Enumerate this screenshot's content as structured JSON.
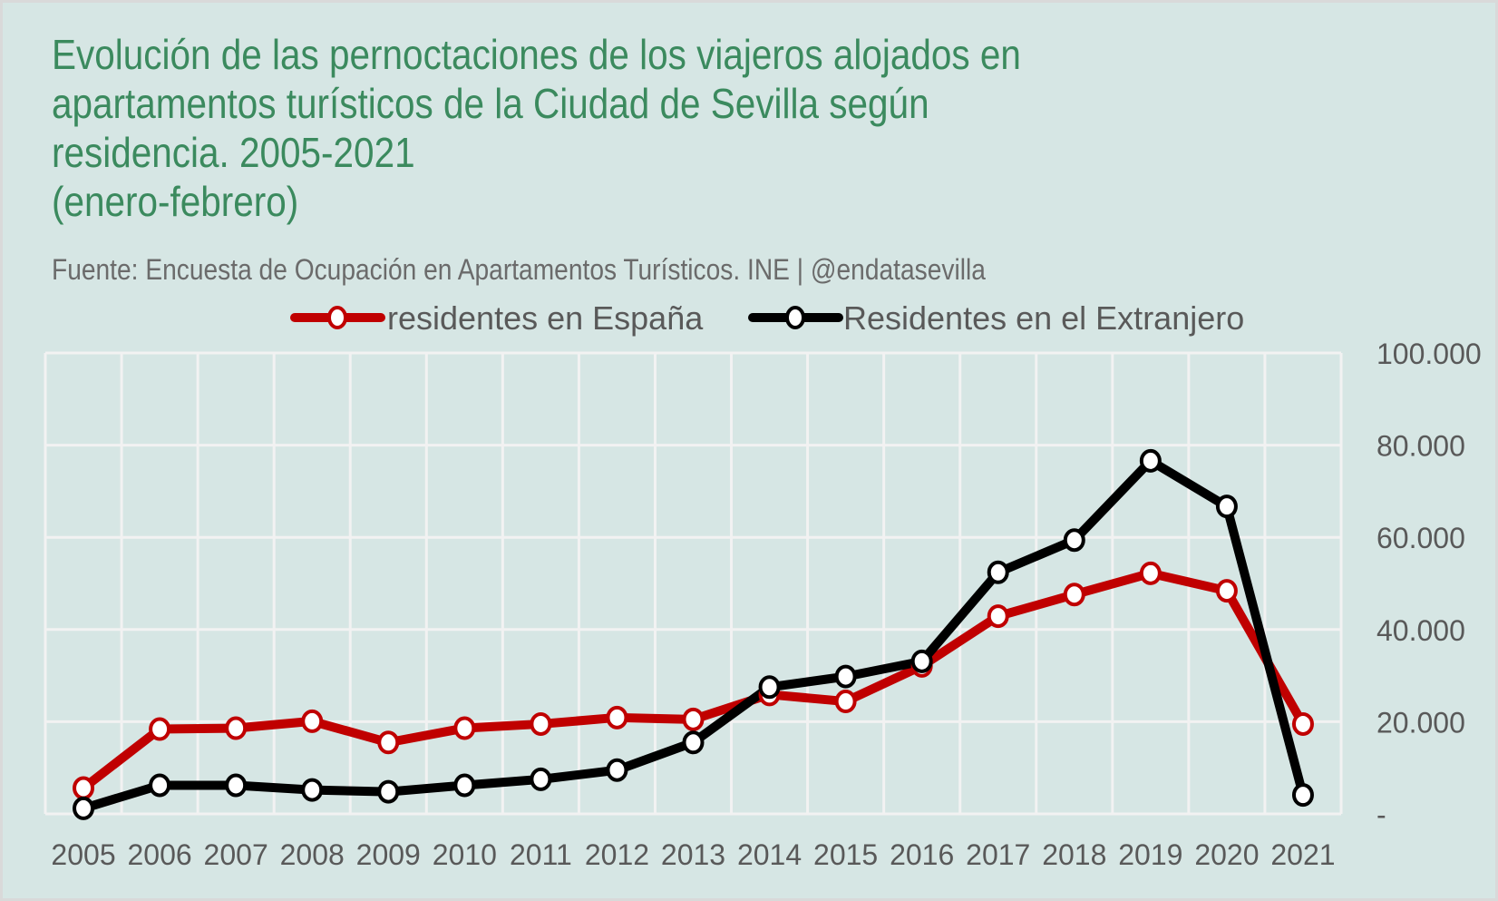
{
  "chart_data": {
    "type": "line",
    "title_lines": [
      "Evolución de las pernoctaciones de los viajeros alojados en",
      "apartamentos turísticos de la Ciudad de Sevilla según",
      "residencia. 2005-2021",
      "(enero-febrero)"
    ],
    "subtitle": "Fuente: Encuesta de Ocupación en Apartamentos Turísticos. INE | @endatasevilla",
    "x": [
      "2005",
      "2006",
      "2007",
      "2008",
      "2009",
      "2010",
      "2011",
      "2012",
      "2013",
      "2014",
      "2015",
      "2016",
      "2017",
      "2018",
      "2019",
      "2020",
      "2021"
    ],
    "series": [
      {
        "name": "residentes en España",
        "color": "#c00000",
        "values": [
          5600,
          18400,
          18600,
          20100,
          15500,
          18600,
          19500,
          20900,
          20500,
          25900,
          24400,
          32100,
          42900,
          47600,
          52200,
          48400,
          19500
        ]
      },
      {
        "name": "Residentes en el Extranjero",
        "color": "#000000",
        "values": [
          1200,
          6200,
          6200,
          5200,
          4800,
          6200,
          7500,
          9500,
          15500,
          27500,
          29800,
          33100,
          52400,
          59400,
          76600,
          66700,
          4100
        ]
      }
    ],
    "ylim": [
      0,
      100000
    ],
    "yticks": [
      0,
      20000,
      40000,
      60000,
      80000,
      100000
    ],
    "ytick_labels": [
      "-",
      "20.000",
      "40.000",
      "60.000",
      "80.000",
      "100.000"
    ],
    "yaxis_position": "right",
    "grid": true,
    "legend": "top-center",
    "xlabel": "",
    "ylabel": ""
  }
}
